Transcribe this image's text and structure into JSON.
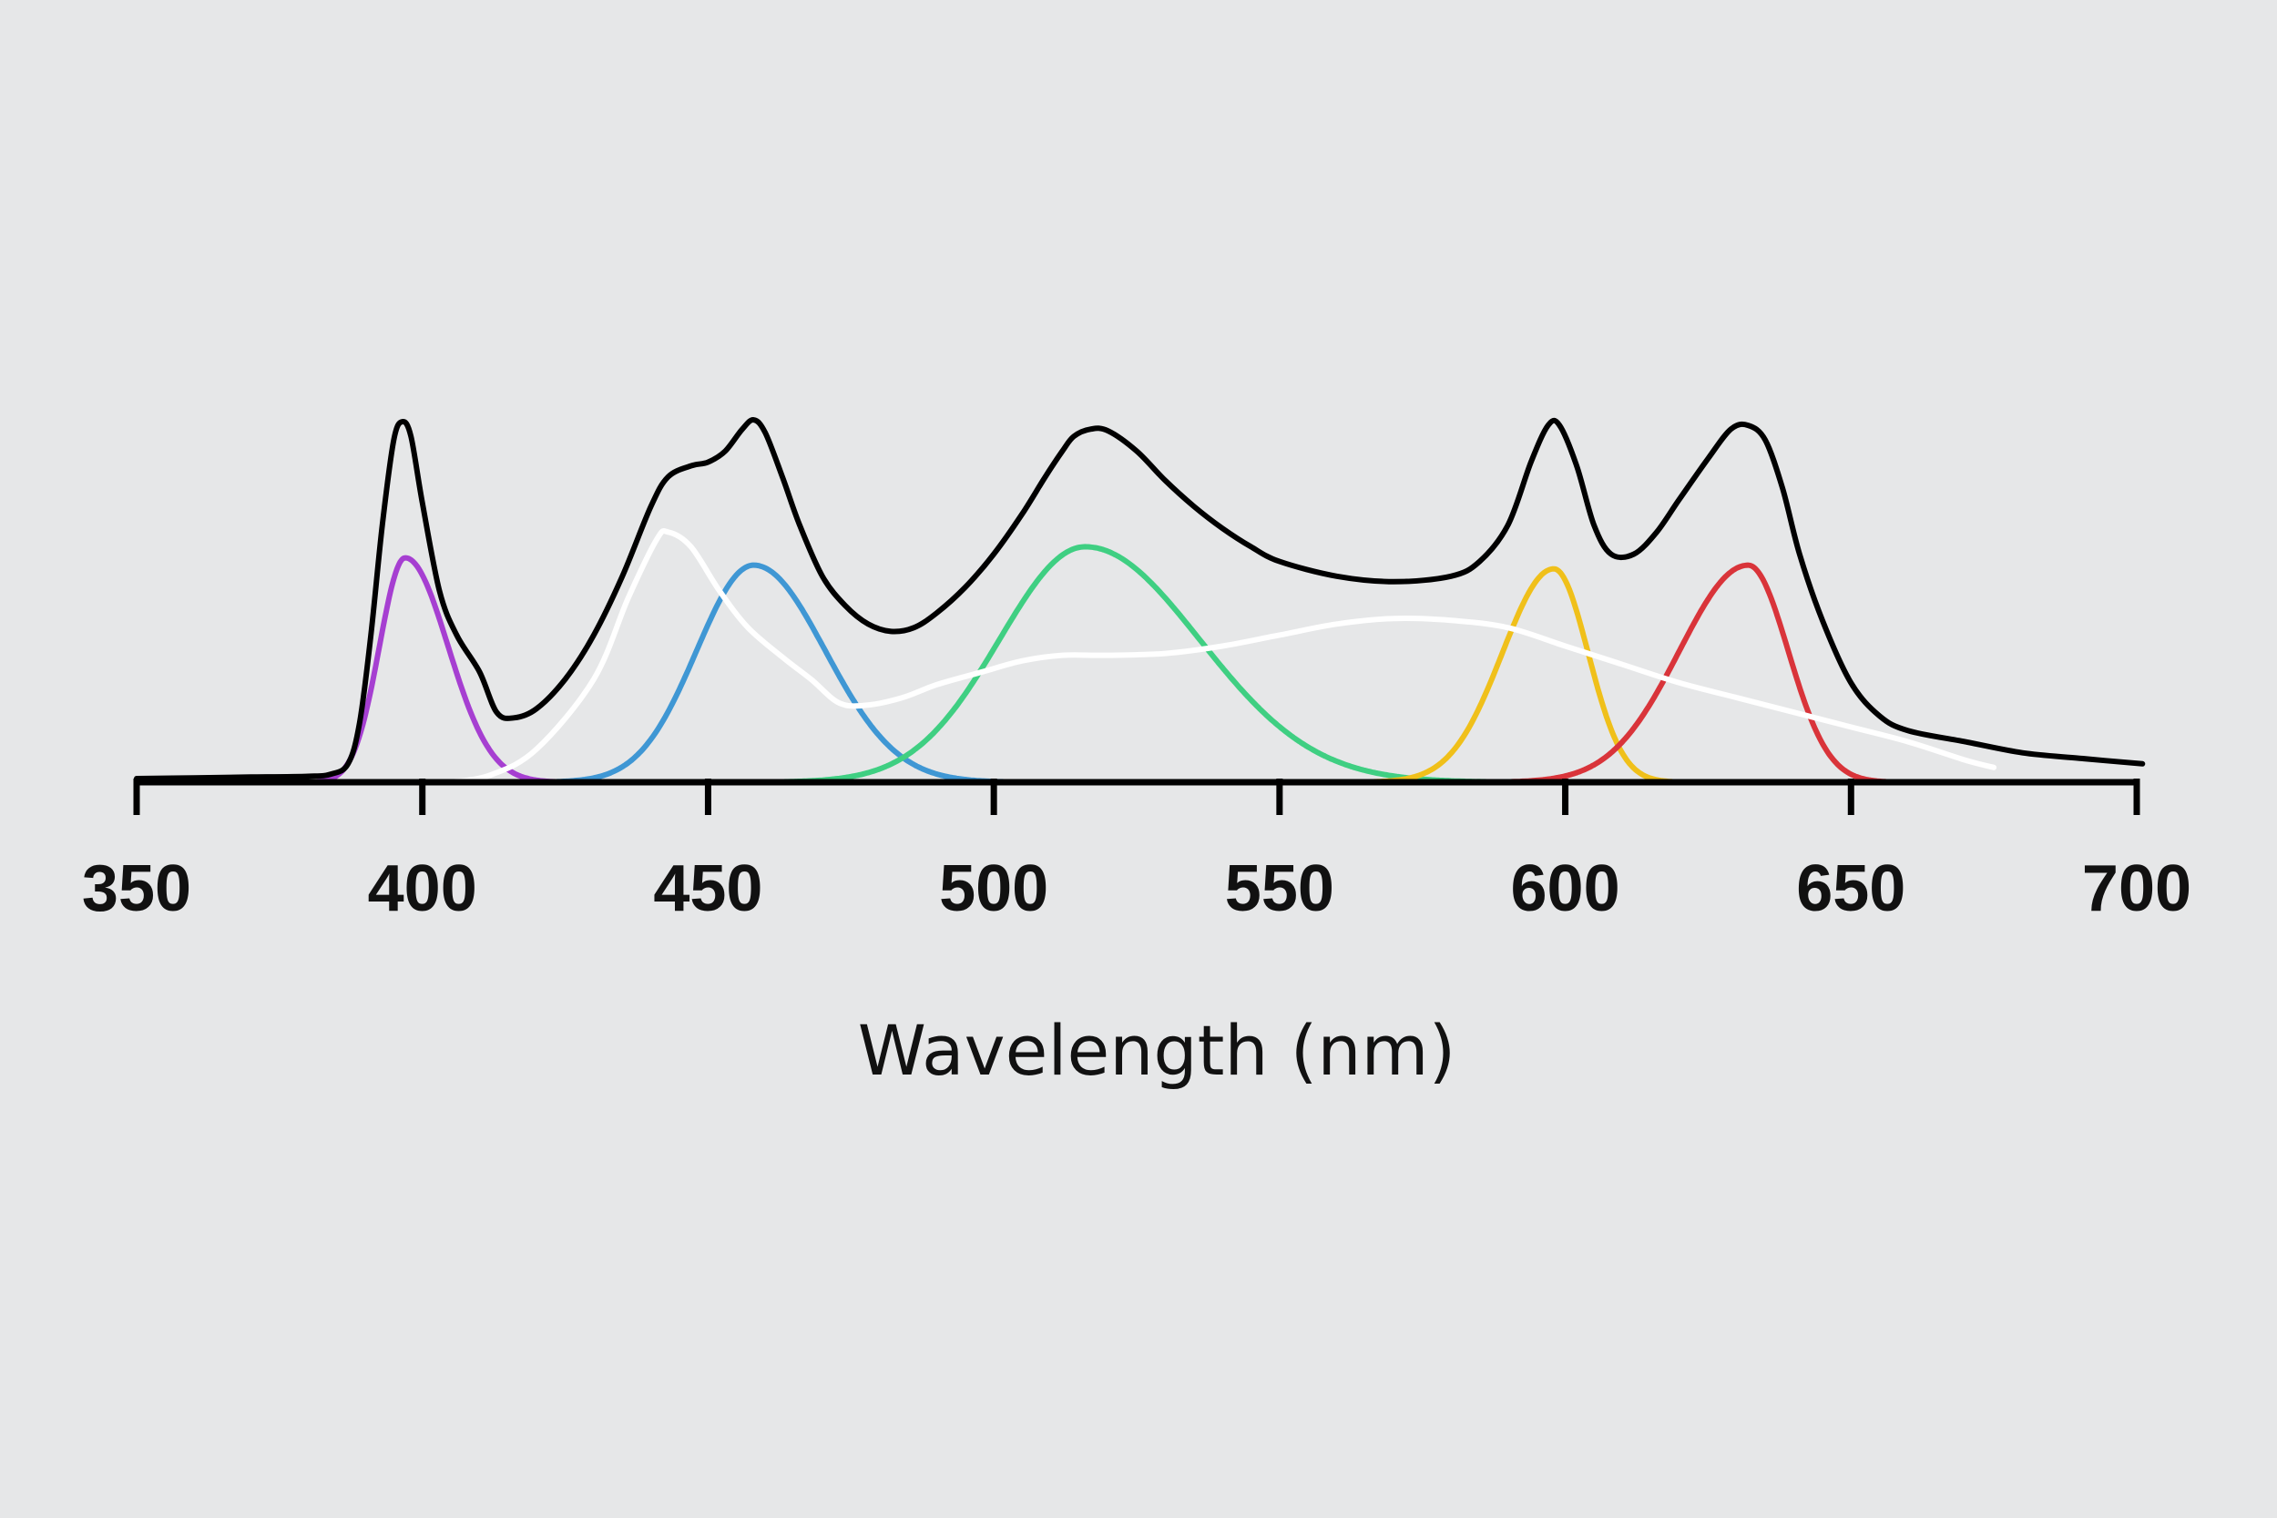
{
  "chart_data": {
    "type": "line",
    "title": "",
    "xlabel": "Wavelength (nm)",
    "ylabel": "",
    "xlim": [
      350,
      700
    ],
    "ylim": [
      0,
      1
    ],
    "x_ticks": [
      350,
      400,
      450,
      500,
      550,
      600,
      650,
      700
    ],
    "grid": false,
    "legend": "none",
    "series": [
      {
        "color": "#a63fd1",
        "peaks": [
          {
            "center": 397,
            "amp": 0.61,
            "sigmaL": 4.5,
            "sigmaR": 7.5
          }
        ]
      },
      {
        "color": "#3f97d4",
        "peaks": [
          {
            "center": 458,
            "amp": 0.59,
            "sigmaL": 10,
            "sigmaR": 12.5
          }
        ]
      },
      {
        "color": "#3fcf82",
        "peaks": [
          {
            "center": 516,
            "amp": 0.64,
            "sigmaL": 15,
            "sigmaR": 20
          }
        ]
      },
      {
        "color": "#f0c01a",
        "peaks": [
          {
            "center": 598,
            "amp": 0.58,
            "sigmaL": 9,
            "sigmaR": 6
          }
        ]
      },
      {
        "color": "#d9343a",
        "peaks": [
          {
            "center": 632,
            "amp": 0.59,
            "sigmaL": 12,
            "sigmaR": 7
          }
        ]
      },
      {
        "color": "#ffffff",
        "points": [
          [
            405,
            0
          ],
          [
            412,
            0.02
          ],
          [
            420,
            0.09
          ],
          [
            430,
            0.28
          ],
          [
            436,
            0.5
          ],
          [
            441,
            0.66
          ],
          [
            443,
            0.68
          ],
          [
            447,
            0.64
          ],
          [
            452,
            0.52
          ],
          [
            457,
            0.42
          ],
          [
            463,
            0.34
          ],
          [
            468,
            0.28
          ],
          [
            473,
            0.215
          ],
          [
            478,
            0.21
          ],
          [
            484,
            0.23
          ],
          [
            490,
            0.265
          ],
          [
            498,
            0.3
          ],
          [
            505,
            0.33
          ],
          [
            512,
            0.345
          ],
          [
            520,
            0.345
          ],
          [
            530,
            0.35
          ],
          [
            540,
            0.37
          ],
          [
            550,
            0.4
          ],
          [
            560,
            0.43
          ],
          [
            570,
            0.445
          ],
          [
            580,
            0.44
          ],
          [
            590,
            0.42
          ],
          [
            600,
            0.37
          ],
          [
            610,
            0.32
          ],
          [
            620,
            0.27
          ],
          [
            630,
            0.23
          ],
          [
            640,
            0.19
          ],
          [
            650,
            0.15
          ],
          [
            660,
            0.11
          ],
          [
            670,
            0.06
          ],
          [
            675,
            0.04
          ]
        ]
      },
      {
        "color": "#000000",
        "points": [
          [
            350,
            0.01
          ],
          [
            360,
            0.012
          ],
          [
            370,
            0.014
          ],
          [
            380,
            0.016
          ],
          [
            384,
            0.022
          ],
          [
            387,
            0.05
          ],
          [
            389,
            0.16
          ],
          [
            391,
            0.4
          ],
          [
            393,
            0.7
          ],
          [
            395,
            0.93
          ],
          [
            396.5,
            0.98
          ],
          [
            398,
            0.94
          ],
          [
            400,
            0.76
          ],
          [
            403,
            0.52
          ],
          [
            406,
            0.4
          ],
          [
            410,
            0.3
          ],
          [
            413,
            0.19
          ],
          [
            416,
            0.175
          ],
          [
            420,
            0.2
          ],
          [
            425,
            0.28
          ],
          [
            430,
            0.4
          ],
          [
            435,
            0.56
          ],
          [
            440,
            0.75
          ],
          [
            443,
            0.83
          ],
          [
            447,
            0.86
          ],
          [
            450,
            0.87
          ],
          [
            453,
            0.9
          ],
          [
            456,
            0.96
          ],
          [
            458,
            0.985
          ],
          [
            460,
            0.95
          ],
          [
            463,
            0.83
          ],
          [
            466,
            0.7
          ],
          [
            470,
            0.56
          ],
          [
            474,
            0.48
          ],
          [
            478,
            0.43
          ],
          [
            482,
            0.41
          ],
          [
            486,
            0.42
          ],
          [
            490,
            0.46
          ],
          [
            495,
            0.53
          ],
          [
            500,
            0.62
          ],
          [
            505,
            0.73
          ],
          [
            509,
            0.83
          ],
          [
            512,
            0.9
          ],
          [
            514,
            0.94
          ],
          [
            517,
            0.96
          ],
          [
            520,
            0.955
          ],
          [
            525,
            0.9
          ],
          [
            530,
            0.82
          ],
          [
            535,
            0.75
          ],
          [
            540,
            0.69
          ],
          [
            545,
            0.64
          ],
          [
            550,
            0.6
          ],
          [
            560,
            0.56
          ],
          [
            570,
            0.545
          ],
          [
            580,
            0.56
          ],
          [
            585,
            0.6
          ],
          [
            590,
            0.7
          ],
          [
            594,
            0.87
          ],
          [
            597,
            0.97
          ],
          [
            599,
            0.97
          ],
          [
            602,
            0.86
          ],
          [
            605,
            0.7
          ],
          [
            608,
            0.62
          ],
          [
            612,
            0.62
          ],
          [
            616,
            0.68
          ],
          [
            620,
            0.77
          ],
          [
            625,
            0.88
          ],
          [
            629,
            0.96
          ],
          [
            632,
            0.97
          ],
          [
            635,
            0.93
          ],
          [
            638,
            0.8
          ],
          [
            641,
            0.62
          ],
          [
            645,
            0.44
          ],
          [
            650,
            0.27
          ],
          [
            655,
            0.18
          ],
          [
            660,
            0.14
          ],
          [
            670,
            0.11
          ],
          [
            680,
            0.08
          ],
          [
            690,
            0.065
          ],
          [
            701,
            0.05
          ]
        ]
      }
    ]
  }
}
